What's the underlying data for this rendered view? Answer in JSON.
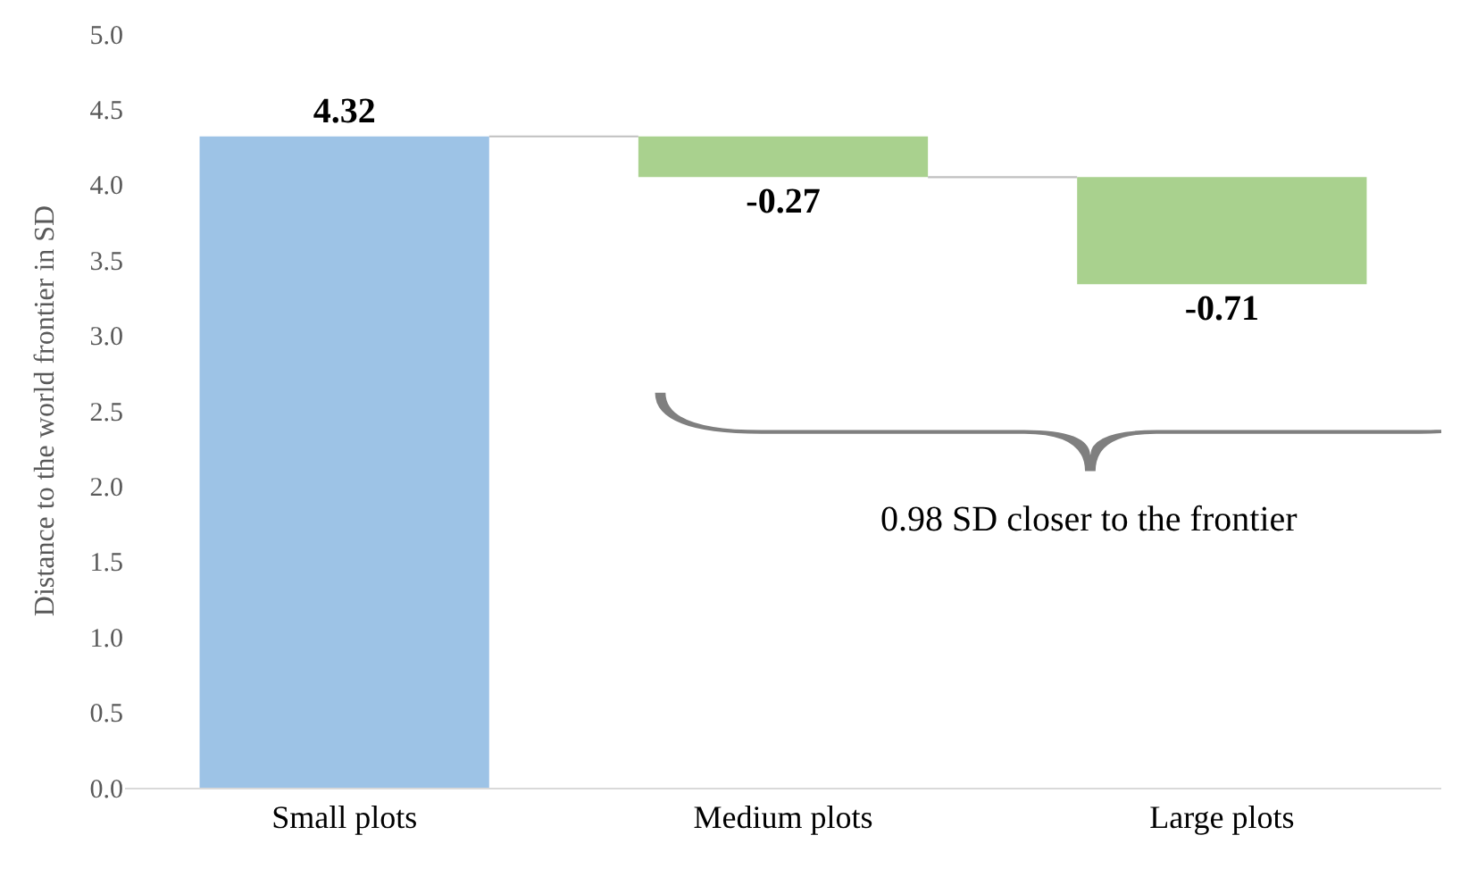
{
  "chart_data": {
    "type": "bar",
    "ylabel": "Distance to the world frontier in SD",
    "categories": [
      "Small plots",
      "Medium plots",
      "Large plots"
    ],
    "values": [
      4.32,
      -0.27,
      -0.71
    ],
    "base": [
      0,
      4.32,
      4.05
    ],
    "colors": [
      "#9dc3e6",
      "#a9d18e",
      "#a9d18e"
    ],
    "data_labels": true,
    "ylim": [
      0,
      5
    ],
    "yticks": [
      {
        "value": 0,
        "label": "0.0"
      },
      {
        "value": 0.5,
        "label": "0.5"
      },
      {
        "value": 1,
        "label": "1.0"
      },
      {
        "value": 1.5,
        "label": "1.5"
      },
      {
        "value": 2,
        "label": "2.0"
      },
      {
        "value": 2.5,
        "label": "2.5"
      },
      {
        "value": 3,
        "label": "3.0"
      },
      {
        "value": 3.5,
        "label": "3.5"
      },
      {
        "value": 4,
        "label": "4.0"
      },
      {
        "value": 4.5,
        "label": "4.5"
      },
      {
        "value": 5,
        "label": "5.0"
      }
    ],
    "annotations": [
      "0.98 SD closer to the frontier"
    ]
  }
}
